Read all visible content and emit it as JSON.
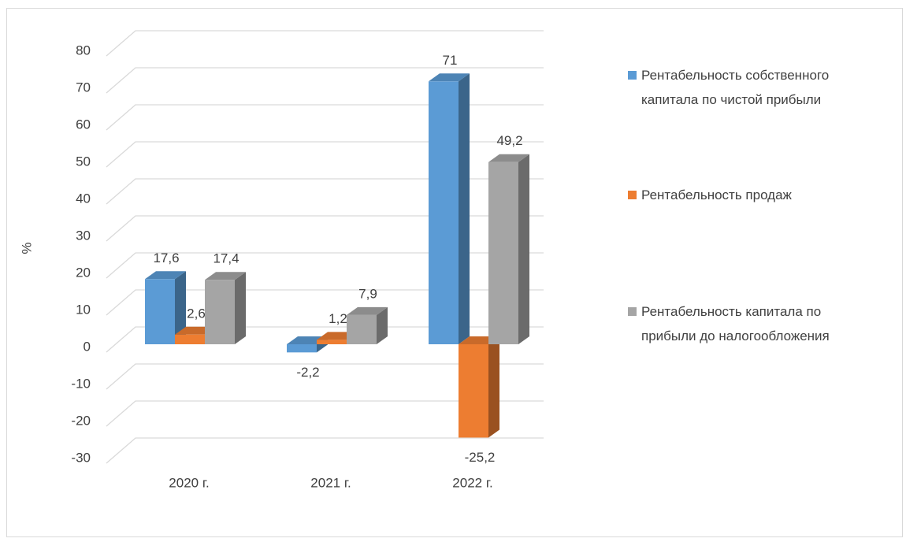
{
  "chart_data": {
    "type": "bar3d",
    "y_label": "%",
    "categories": [
      "2020 г.",
      "2021 г.",
      "2022 г."
    ],
    "series": [
      {
        "name": "Рентабельность собственного капитала по чистой прибыли",
        "color": "#5b9bd5",
        "values": [
          17.6,
          -2.2,
          71
        ],
        "value_labels": [
          "17,6",
          "-2,2",
          "71"
        ]
      },
      {
        "name": "Рентабельность продаж",
        "color": "#ed7d31",
        "values": [
          2.6,
          1.2,
          -25.2
        ],
        "value_labels": [
          "2,6",
          "1,2",
          "-25,2"
        ]
      },
      {
        "name": "Рентабельность капитала по прибыли до налогообложения",
        "color": "#a5a5a5",
        "values": [
          17.4,
          7.9,
          49.2
        ],
        "value_labels": [
          "17,4",
          "7,9",
          "49,2"
        ]
      }
    ],
    "ylim": [
      -30,
      80
    ],
    "yticks": [
      -30,
      -20,
      -10,
      0,
      10,
      20,
      30,
      40,
      50,
      60,
      70,
      80
    ],
    "grid": true,
    "legend": "right"
  }
}
